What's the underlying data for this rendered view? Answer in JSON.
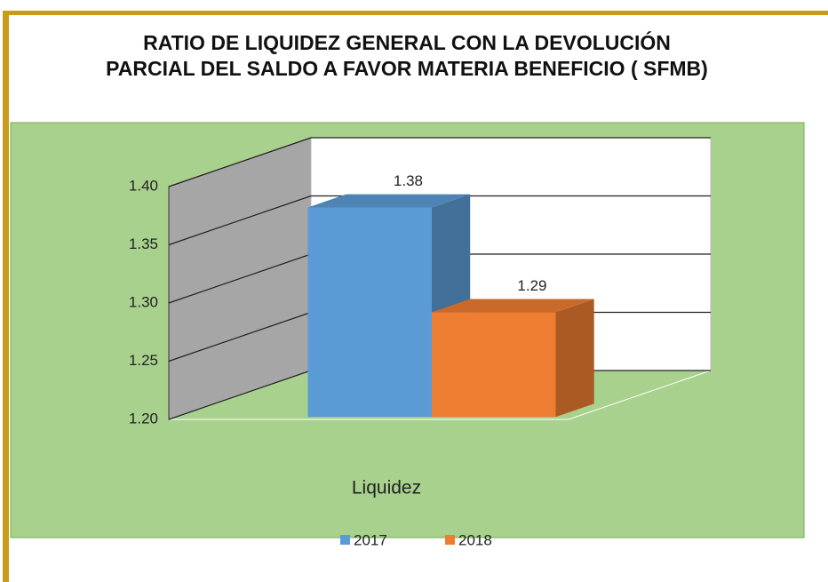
{
  "chart_data": {
    "type": "bar3d",
    "title": "RATIO DE LIQUIDEZ GENERAL  CON LA DEVOLUCIÓN PARCIAL DEL SALDO A FAVOR MATERIA BENEFICIO ( SFMB)",
    "categories": [
      "Liquidez"
    ],
    "series": [
      {
        "name": "2017",
        "color": "#5b9bd5",
        "values": [
          1.38
        ]
      },
      {
        "name": "2018",
        "color": "#ed7d31",
        "values": [
          1.29
        ]
      }
    ],
    "ylim": [
      1.2,
      1.4
    ],
    "yticks": [
      {
        "value": 1.2,
        "label": "1.20"
      },
      {
        "value": 1.25,
        "label": "1.25"
      },
      {
        "value": 1.3,
        "label": "1.30"
      },
      {
        "value": 1.35,
        "label": "1.35"
      },
      {
        "value": 1.4,
        "label": "1.40"
      }
    ],
    "grid": true,
    "legend": "bottom"
  }
}
